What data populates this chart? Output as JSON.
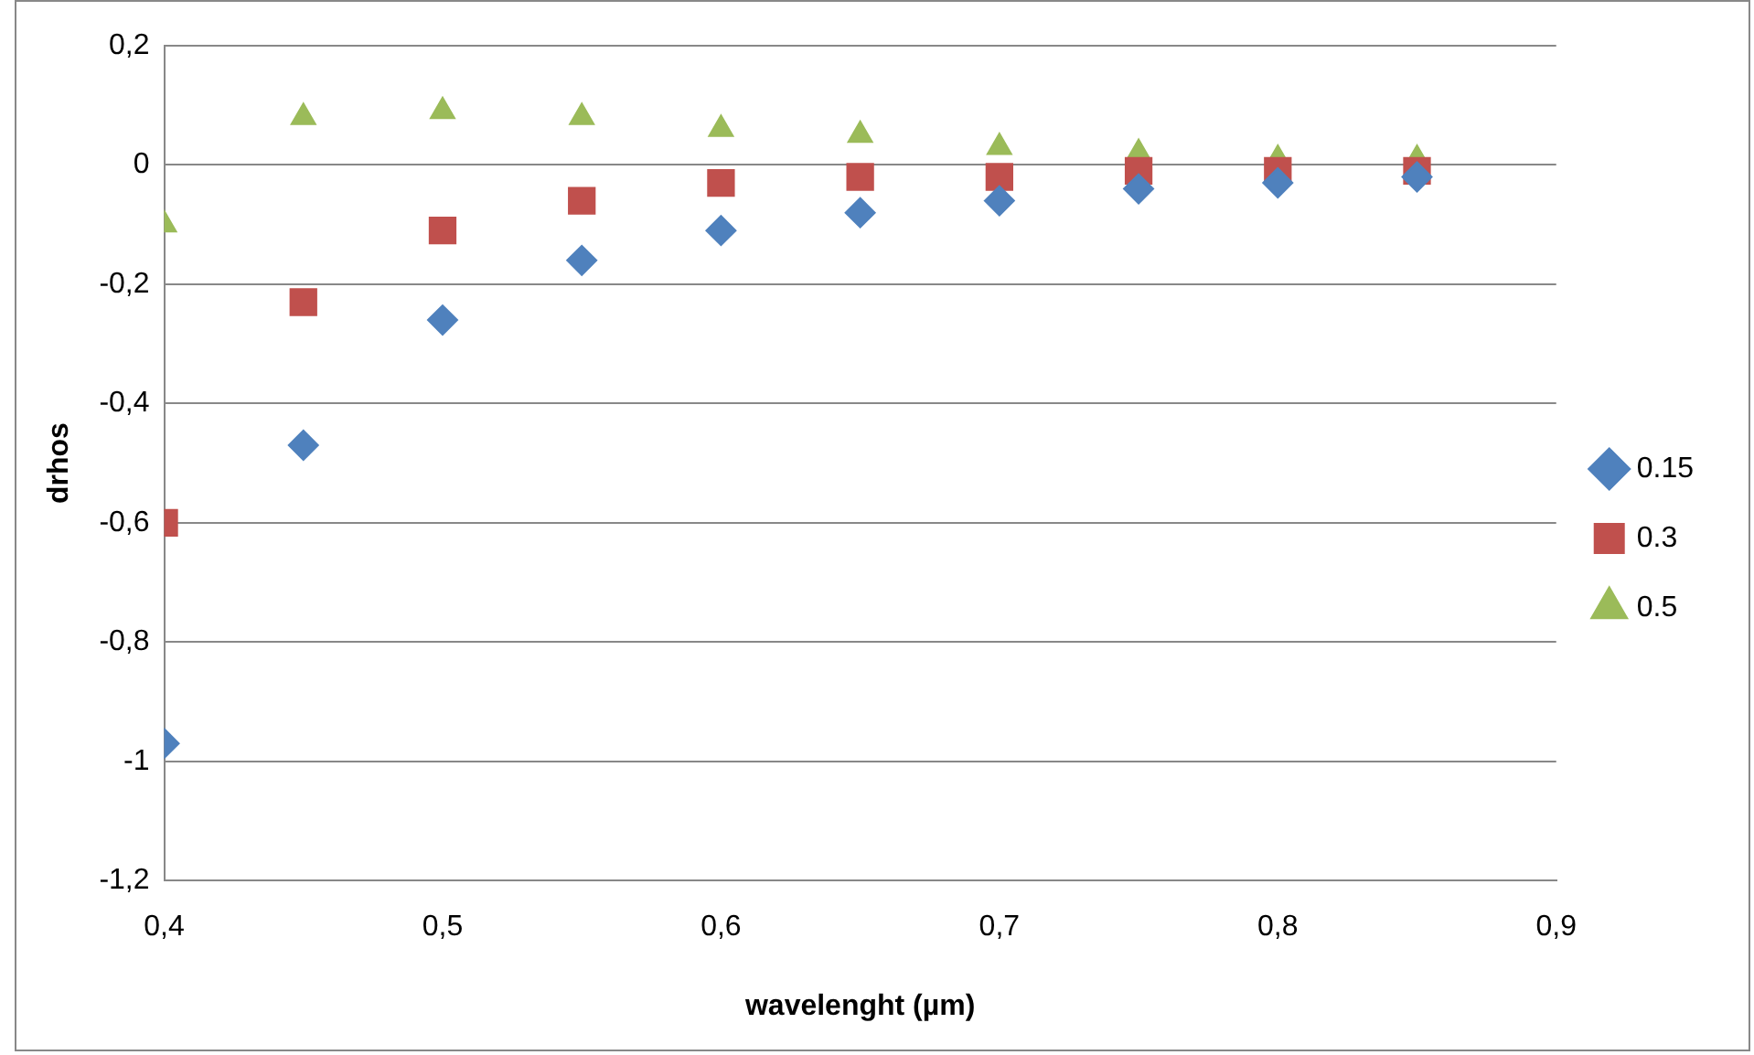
{
  "chart_data": {
    "type": "scatter",
    "xlabel": "wavelenght (µm)",
    "ylabel": "drhos",
    "x": [
      0.4,
      0.45,
      0.5,
      0.55,
      0.6,
      0.65,
      0.7,
      0.75,
      0.8,
      0.85
    ],
    "series": [
      {
        "name": "0.15",
        "color": "#4f81bd",
        "marker": "diamond",
        "values": [
          -0.97,
          -0.47,
          -0.26,
          -0.16,
          -0.11,
          -0.08,
          -0.06,
          -0.04,
          -0.03,
          -0.02
        ]
      },
      {
        "name": "0.3",
        "color": "#c0504d",
        "marker": "square",
        "values": [
          -0.6,
          -0.23,
          -0.11,
          -0.06,
          -0.03,
          -0.02,
          -0.02,
          -0.01,
          -0.01,
          -0.01
        ]
      },
      {
        "name": "0.5",
        "color": "#9bbb59",
        "marker": "triangle",
        "values": [
          -0.1,
          0.08,
          0.09,
          0.08,
          0.06,
          0.05,
          0.03,
          0.02,
          0.01,
          0.01
        ]
      }
    ],
    "xlim": [
      0.4,
      0.9
    ],
    "xticks": [
      {
        "value": 0.4,
        "label": "0,4"
      },
      {
        "value": 0.5,
        "label": "0,5"
      },
      {
        "value": 0.6,
        "label": "0,6"
      },
      {
        "value": 0.7,
        "label": "0,7"
      },
      {
        "value": 0.8,
        "label": "0,8"
      },
      {
        "value": 0.9,
        "label": "0,9"
      }
    ],
    "ylim": [
      -1.2,
      0.2
    ],
    "yticks": [
      {
        "value": -1.2,
        "label": "-1,2"
      },
      {
        "value": -1,
        "label": "-1"
      },
      {
        "value": -0.8,
        "label": "-0,8"
      },
      {
        "value": -0.6,
        "label": "-0,6"
      },
      {
        "value": -0.4,
        "label": "-0,4"
      },
      {
        "value": -0.2,
        "label": "-0,2"
      },
      {
        "value": 0,
        "label": "0"
      },
      {
        "value": 0.2,
        "label": "0,2"
      }
    ],
    "grid": "y",
    "legend": "right"
  }
}
